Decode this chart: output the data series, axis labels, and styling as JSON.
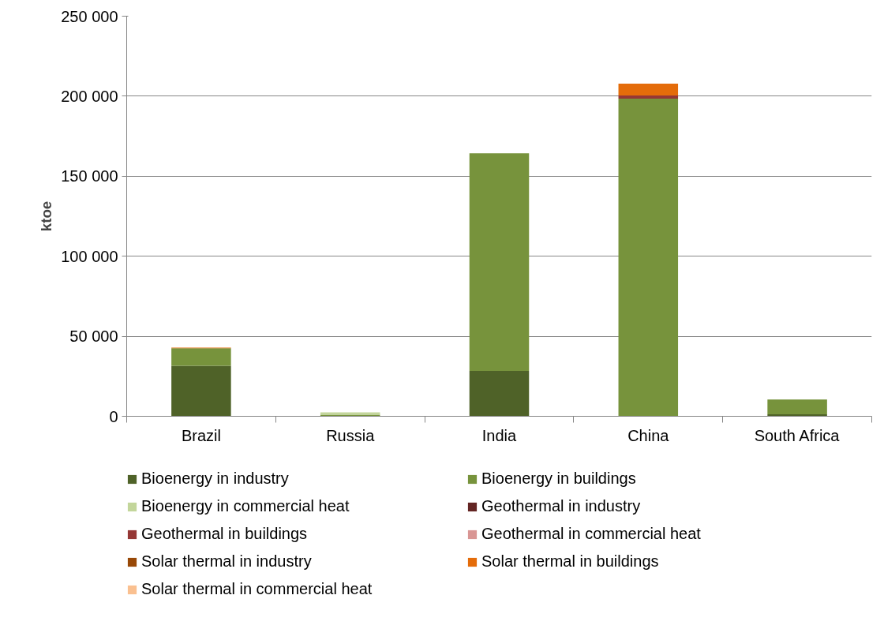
{
  "chart_data": {
    "type": "bar",
    "stacked": true,
    "ylabel": "ktoe",
    "categories": [
      "Brazil",
      "Russia",
      "India",
      "China",
      "South Africa"
    ],
    "series": [
      {
        "name": "Bioenergy in industry",
        "color": "#4f6228",
        "values": [
          31500,
          0,
          28400,
          0,
          1200
        ]
      },
      {
        "name": "Bioenergy in buildings",
        "color": "#77933c",
        "values": [
          11000,
          1000,
          135900,
          198500,
          9300
        ]
      },
      {
        "name": "Bioenergy in commercial heat",
        "color": "#c3d69b",
        "values": [
          0,
          1500,
          0,
          0,
          0
        ]
      },
      {
        "name": "Geothermal in industry",
        "color": "#632523",
        "values": [
          0,
          0,
          0,
          0,
          0
        ]
      },
      {
        "name": "Geothermal in buildings",
        "color": "#953735",
        "values": [
          0,
          0,
          0,
          2000,
          0
        ]
      },
      {
        "name": "Geothermal in commercial heat",
        "color": "#d99694",
        "values": [
          0,
          0,
          0,
          0,
          0
        ]
      },
      {
        "name": "Solar thermal in industry",
        "color": "#984807",
        "values": [
          0,
          0,
          0,
          0,
          0
        ]
      },
      {
        "name": "Solar thermal in buildings",
        "color": "#e46c0a",
        "values": [
          400,
          0,
          0,
          7400,
          0
        ]
      },
      {
        "name": "Solar thermal in commercial heat",
        "color": "#fac090",
        "values": [
          0,
          0,
          0,
          0,
          0
        ]
      }
    ],
    "ylim": [
      0,
      250000
    ],
    "yticks": [
      {
        "value": 0,
        "label": "0"
      },
      {
        "value": 50000,
        "label": "50 000"
      },
      {
        "value": 100000,
        "label": "100 000"
      },
      {
        "value": 150000,
        "label": "150 000"
      },
      {
        "value": 200000,
        "label": "200 000"
      },
      {
        "value": 250000,
        "label": "250 000"
      }
    ],
    "grid": "y",
    "legend": "bottom"
  }
}
